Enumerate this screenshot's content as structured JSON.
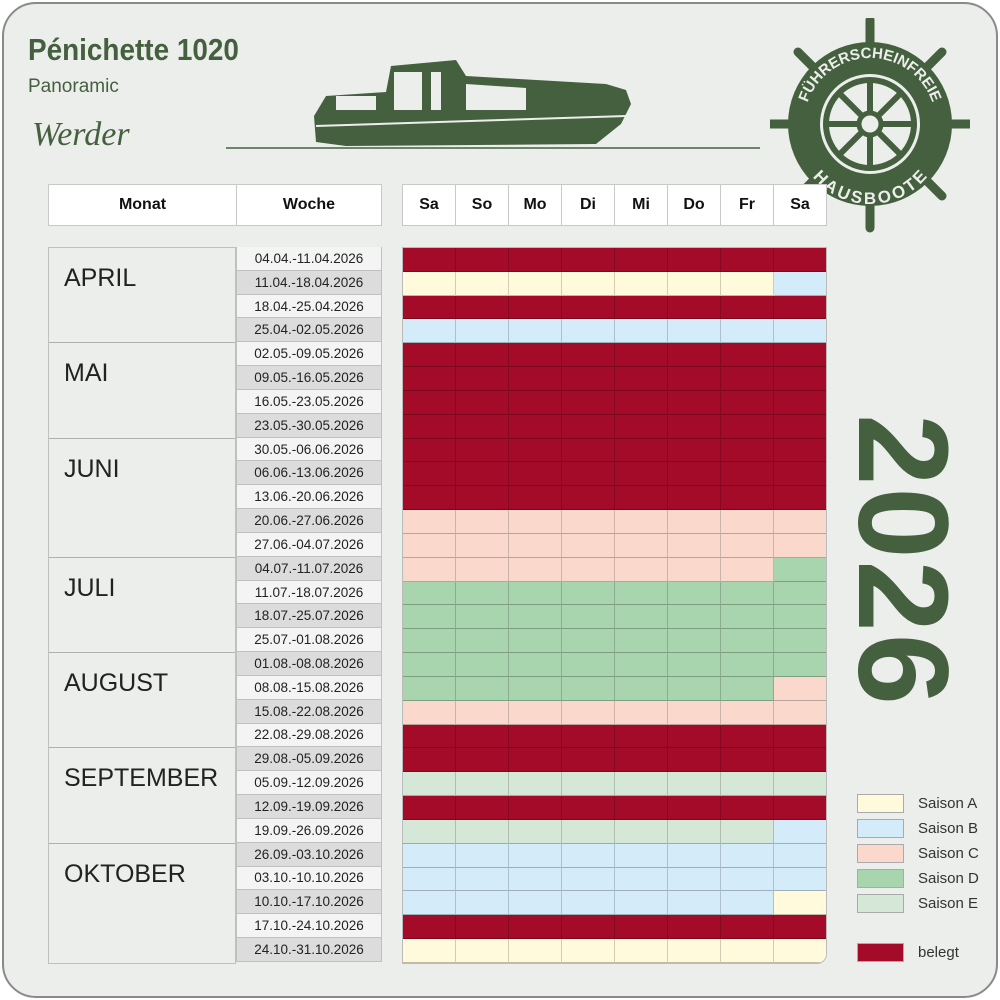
{
  "header": {
    "title": "Pénichette 1020",
    "subtitle": "Panoramic",
    "location": "Werder",
    "year": "2026"
  },
  "logo": {
    "text_top": "FÜHRERSCHEINFREIE",
    "text_bottom": "HAUSBOOTE"
  },
  "columns": {
    "month": "Monat",
    "week": "Woche",
    "days": [
      "Sa",
      "So",
      "Mo",
      "Di",
      "Mi",
      "Do",
      "Fr",
      "Sa"
    ]
  },
  "colors": {
    "A": "#fefadb",
    "B": "#d4ebfa",
    "C": "#fad9cc",
    "D": "#a8d4ae",
    "E": "#d5e8d8",
    "X": "#a30b28"
  },
  "legend": [
    {
      "key": "A",
      "label": "Saison A"
    },
    {
      "key": "B",
      "label": "Saison B"
    },
    {
      "key": "C",
      "label": "Saison C"
    },
    {
      "key": "D",
      "label": "Saison D"
    },
    {
      "key": "E",
      "label": "Saison E"
    },
    {
      "key": "X",
      "label": "belegt"
    }
  ],
  "months": [
    {
      "name": "APRIL",
      "weeks": 4
    },
    {
      "name": "MAI",
      "weeks": 4
    },
    {
      "name": "JUNI",
      "weeks": 5
    },
    {
      "name": "JULI",
      "weeks": 4
    },
    {
      "name": "AUGUST",
      "weeks": 4
    },
    {
      "name": "SEPTEMBER",
      "weeks": 4
    },
    {
      "name": "OKTOBER",
      "weeks": 5
    }
  ],
  "weeks": [
    {
      "label": "04.04.-11.04.2026",
      "days": "XXXXXXXX"
    },
    {
      "label": "11.04.-18.04.2026",
      "days": "AAAAAAAB"
    },
    {
      "label": "18.04.-25.04.2026",
      "days": "XXXXXXXX"
    },
    {
      "label": "25.04.-02.05.2026",
      "days": "BBBBBBBB"
    },
    {
      "label": "02.05.-09.05.2026",
      "days": "XXXXXXXX"
    },
    {
      "label": "09.05.-16.05.2026",
      "days": "XXXXXXXX"
    },
    {
      "label": "16.05.-23.05.2026",
      "days": "XXXXXXXX"
    },
    {
      "label": "23.05.-30.05.2026",
      "days": "XXXXXXXX"
    },
    {
      "label": "30.05.-06.06.2026",
      "days": "XXXXXXXX"
    },
    {
      "label": "06.06.-13.06.2026",
      "days": "XXXXXXXX"
    },
    {
      "label": "13.06.-20.06.2026",
      "days": "XXXXXXXX"
    },
    {
      "label": "20.06.-27.06.2026",
      "days": "CCCCCCCC"
    },
    {
      "label": "27.06.-04.07.2026",
      "days": "CCCCCCCC"
    },
    {
      "label": "04.07.-11.07.2026",
      "days": "CCCCCCCD"
    },
    {
      "label": "11.07.-18.07.2026",
      "days": "DDDDDDDD"
    },
    {
      "label": "18.07.-25.07.2026",
      "days": "DDDDDDDD"
    },
    {
      "label": "25.07.-01.08.2026",
      "days": "DDDDDDDD"
    },
    {
      "label": "01.08.-08.08.2026",
      "days": "DDDDDDDD"
    },
    {
      "label": "08.08.-15.08.2026",
      "days": "DDDDDDDC"
    },
    {
      "label": "15.08.-22.08.2026",
      "days": "CCCCCCCC"
    },
    {
      "label": "22.08.-29.08.2026",
      "days": "XXXXXXXX"
    },
    {
      "label": "29.08.-05.09.2026",
      "days": "XXXXXXXX"
    },
    {
      "label": "05.09.-12.09.2026",
      "days": "EEEEEEEE"
    },
    {
      "label": "12.09.-19.09.2026",
      "days": "XXXXXXXX"
    },
    {
      "label": "19.09.-26.09.2026",
      "days": "EEEEEEEB"
    },
    {
      "label": "26.09.-03.10.2026",
      "days": "BBBBBBBB"
    },
    {
      "label": "03.10.-10.10.2026",
      "days": "BBBBBBBB"
    },
    {
      "label": "10.10.-17.10.2026",
      "days": "BBBBBBBA"
    },
    {
      "label": "17.10.-24.10.2026",
      "days": "XXXXXXXX"
    },
    {
      "label": "24.10.-31.10.2026",
      "days": "AAAAAAAA"
    }
  ]
}
